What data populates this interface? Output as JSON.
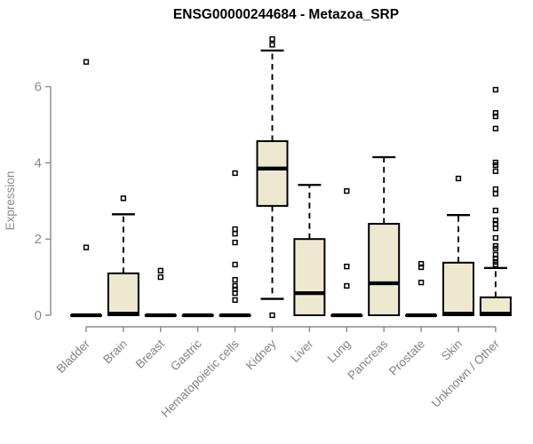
{
  "chart_data": {
    "type": "boxplot",
    "title": "ENSG00000244684 - Metazoa_SRP",
    "ylabel": "Expression",
    "ylim": [
      0,
      7.3
    ],
    "yticks": [
      0,
      2,
      4,
      6
    ],
    "grid": false,
    "legend": null,
    "categories": [
      "Bladder",
      "Brain",
      "Breast",
      "Gastric",
      "Hematopoietic cells",
      "Kidney",
      "Liver",
      "Lung",
      "Pancreas",
      "Prostate",
      "Skin",
      "Unknown / Other"
    ],
    "boxes": [
      {
        "category": "Bladder",
        "q1": 0,
        "median": 0,
        "q3": 0,
        "whisker_low": 0,
        "whisker_high": 0,
        "outliers": [
          6.65,
          1.78
        ]
      },
      {
        "category": "Brain",
        "q1": 0,
        "median": 0.04,
        "q3": 1.1,
        "whisker_low": 0,
        "whisker_high": 2.65,
        "outliers": [
          3.07
        ]
      },
      {
        "category": "Breast",
        "q1": 0,
        "median": 0,
        "q3": 0,
        "whisker_low": 0,
        "whisker_high": 0,
        "outliers": [
          1.17,
          1.0
        ]
      },
      {
        "category": "Gastric",
        "q1": 0,
        "median": 0,
        "q3": 0,
        "whisker_low": 0,
        "whisker_high": 0,
        "outliers": []
      },
      {
        "category": "Hematopoietic cells",
        "q1": 0,
        "median": 0,
        "q3": 0,
        "whisker_low": 0,
        "whisker_high": 0,
        "outliers": [
          3.73,
          2.26,
          2.14,
          1.91,
          1.33,
          0.93,
          0.77,
          0.68,
          0.58,
          0.4
        ]
      },
      {
        "category": "Kidney",
        "q1": 2.87,
        "median": 3.85,
        "q3": 4.57,
        "whisker_low": 0.43,
        "whisker_high": 6.95,
        "outliers": [
          7.25,
          7.1,
          0
        ]
      },
      {
        "category": "Liver",
        "q1": 0,
        "median": 0.58,
        "q3": 2.0,
        "whisker_low": 0,
        "whisker_high": 3.42,
        "outliers": []
      },
      {
        "category": "Lung",
        "q1": 0,
        "median": 0,
        "q3": 0,
        "whisker_low": 0,
        "whisker_high": 0,
        "outliers": [
          3.26,
          1.28,
          0.77
        ]
      },
      {
        "category": "Pancreas",
        "q1": 0,
        "median": 0.84,
        "q3": 2.4,
        "whisker_low": 0,
        "whisker_high": 4.15,
        "outliers": []
      },
      {
        "category": "Prostate",
        "q1": 0,
        "median": 0,
        "q3": 0,
        "whisker_low": 0,
        "whisker_high": 0,
        "outliers": [
          1.35,
          1.26,
          0.86
        ]
      },
      {
        "category": "Skin",
        "q1": 0,
        "median": 0.04,
        "q3": 1.38,
        "whisker_low": 0,
        "whisker_high": 2.63,
        "outliers": [
          3.59
        ]
      },
      {
        "category": "Unknown / Other",
        "q1": 0,
        "median": 0.04,
        "q3": 0.47,
        "whisker_low": 0,
        "whisker_high": 1.24,
        "outliers": [
          5.92,
          5.31,
          5.22,
          4.9,
          4.01,
          3.94,
          3.78,
          3.31,
          3.19,
          2.75,
          2.49,
          2.4,
          2.28,
          2.03,
          1.82,
          1.75,
          1.59,
          1.49,
          1.4,
          1.33
        ]
      }
    ],
    "colors": {
      "box_fill": "#ede8d0",
      "box_stroke": "#000000",
      "median": "#000000",
      "whisker": "#000000",
      "axis": "#8a8a8a",
      "tick_text": "#8a8a8a",
      "title_text": "#000000"
    }
  }
}
